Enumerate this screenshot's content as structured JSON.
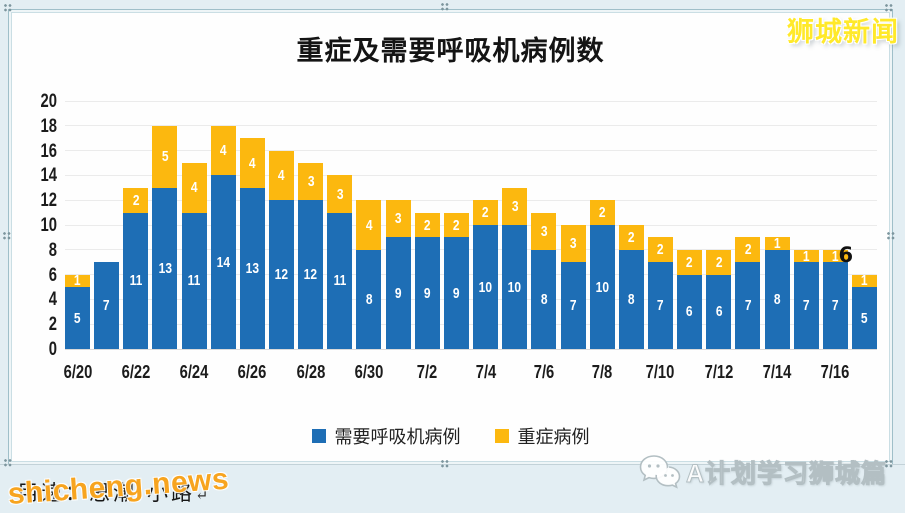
{
  "watermarks": {
    "top_right": "狮城新闻",
    "bottom_left": "shicheng.news",
    "bottom_right": "A计划学习狮城篇"
  },
  "caption": {
    "text": "用速：思潮·小路",
    "return_mark": "↵"
  },
  "chart_data": {
    "type": "bar",
    "stacked": true,
    "title": "重症及需要呼吸机病例数",
    "categories": [
      "6/20",
      "6/21",
      "6/22",
      "6/23",
      "6/24",
      "6/25",
      "6/26",
      "6/27",
      "6/28",
      "6/29",
      "6/30",
      "7/1",
      "7/2",
      "7/3",
      "7/4",
      "7/5",
      "7/6",
      "7/7",
      "7/8",
      "7/9",
      "7/10",
      "7/11",
      "7/12",
      "7/13",
      "7/14",
      "7/15",
      "7/16",
      "7/17"
    ],
    "series": [
      {
        "name": "需要呼吸机病例",
        "color": "#1e6eb5",
        "values": [
          5,
          7,
          11,
          13,
          11,
          14,
          13,
          12,
          12,
          11,
          8,
          9,
          9,
          9,
          10,
          10,
          8,
          7,
          10,
          8,
          7,
          6,
          6,
          7,
          8,
          7,
          7,
          5
        ]
      },
      {
        "name": "重症病例",
        "color": "#fcb80f",
        "values": [
          1,
          0,
          2,
          5,
          4,
          4,
          4,
          4,
          3,
          3,
          4,
          3,
          2,
          2,
          2,
          3,
          3,
          3,
          2,
          2,
          2,
          2,
          2,
          2,
          1,
          1,
          1,
          1
        ]
      }
    ],
    "ylim": [
      0,
      20
    ],
    "yticks": [
      0,
      2,
      4,
      6,
      8,
      10,
      12,
      14,
      16,
      18,
      20
    ],
    "xticks_shown": [
      "6/20",
      "6/22",
      "6/24",
      "6/26",
      "6/28",
      "6/30",
      "7/2",
      "7/4",
      "7/6",
      "7/8",
      "7/10",
      "7/12",
      "7/14",
      "7/16"
    ],
    "grid": true,
    "legend_position": "bottom",
    "annotation": {
      "text": "6",
      "target_category": "7/17"
    }
  }
}
